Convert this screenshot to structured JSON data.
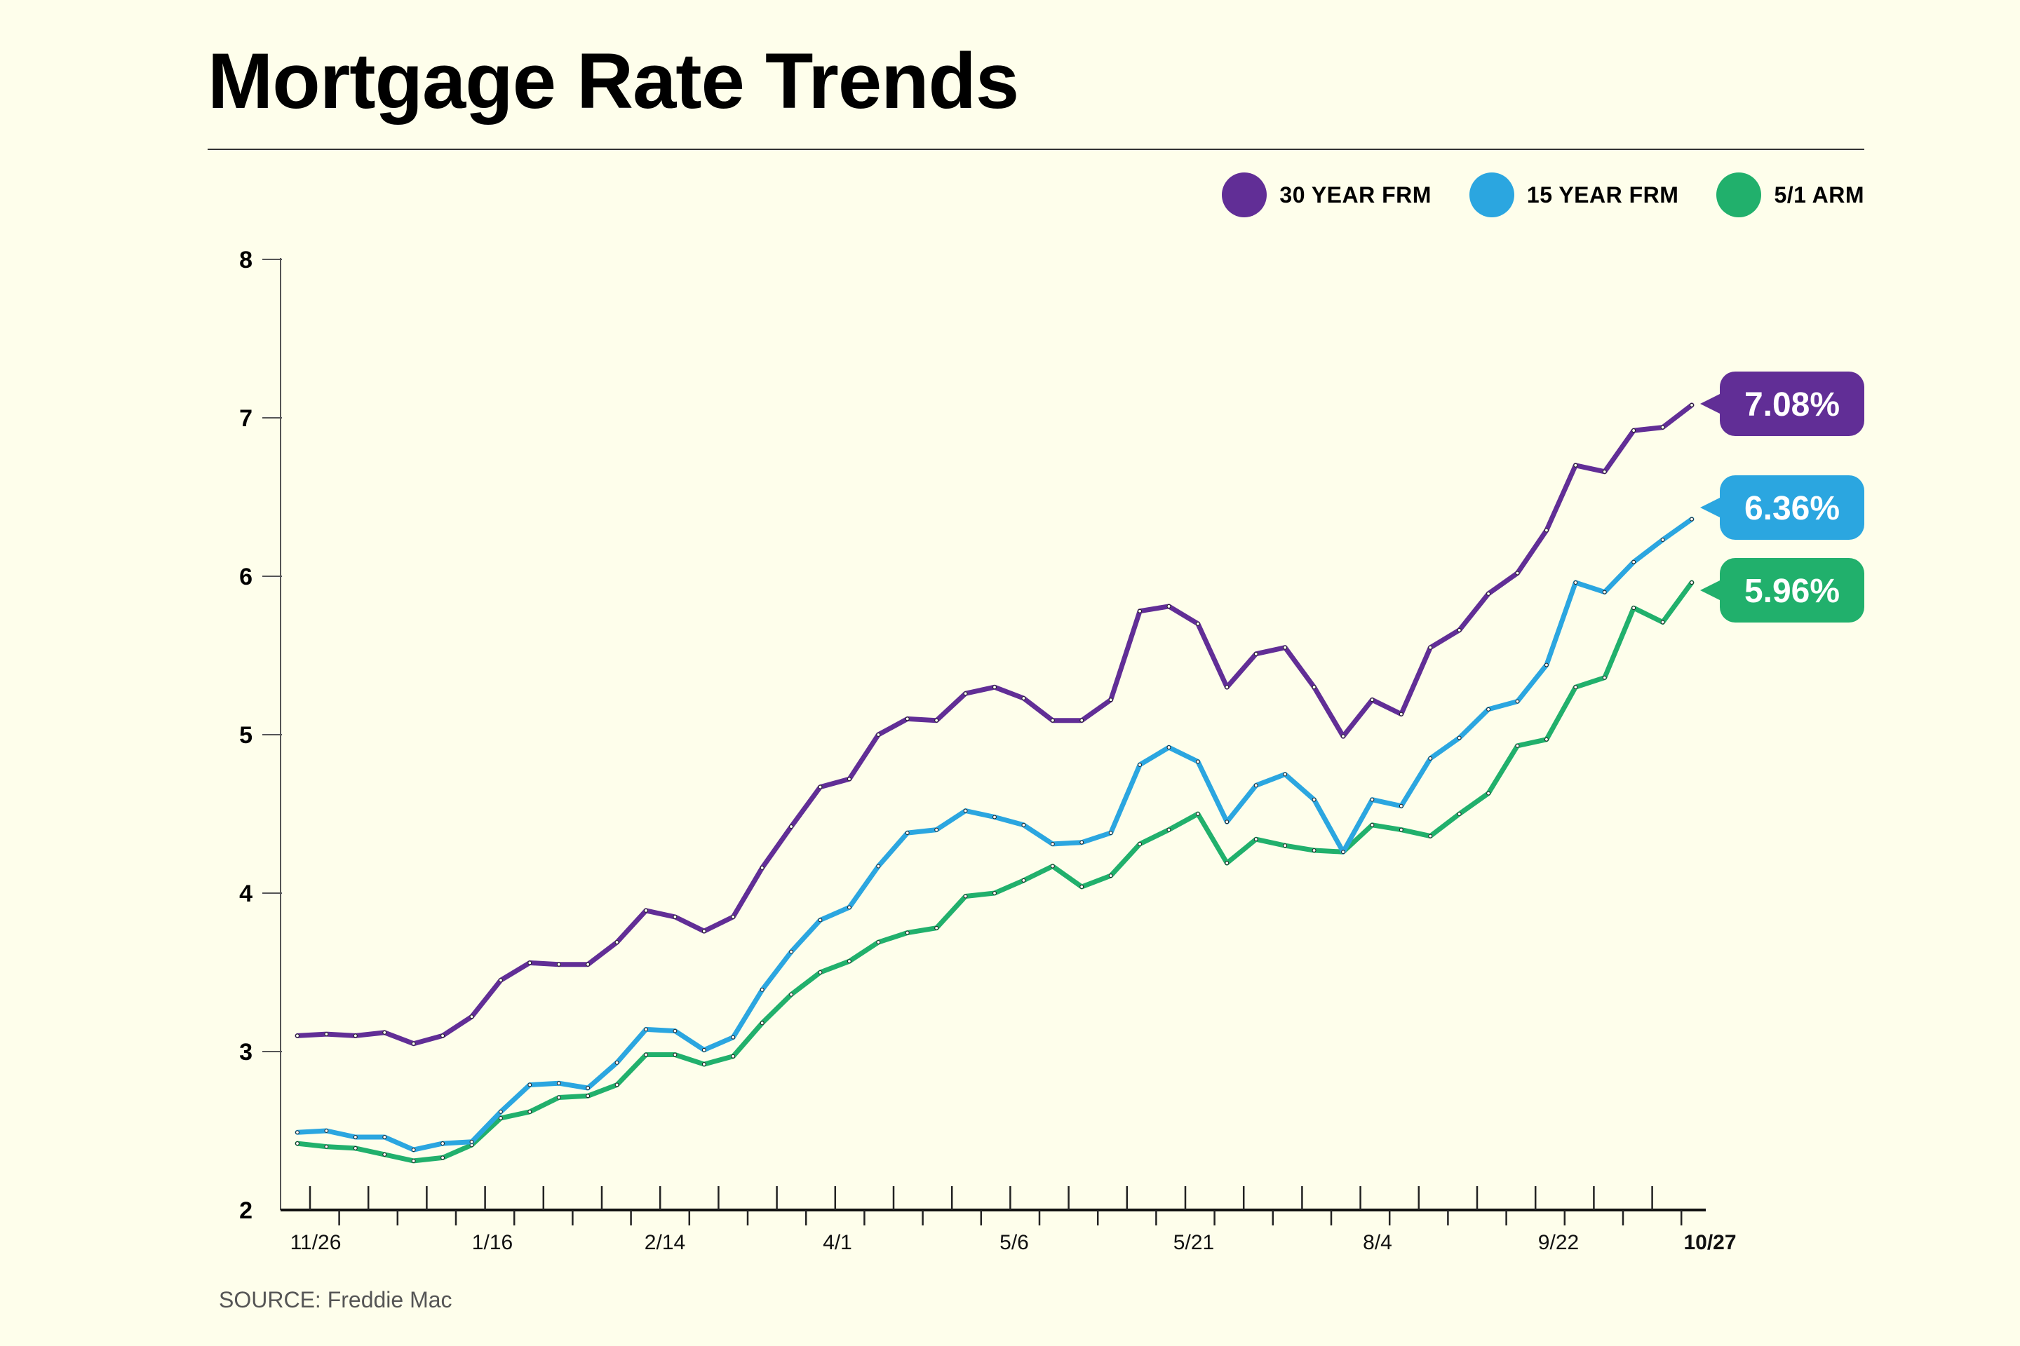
{
  "title": "Mortgage Rate Trends",
  "source": "SOURCE: Freddie Mac",
  "colors": {
    "rate30": "#612e96",
    "rate15": "#2ba6e0",
    "arm": "#21b06c",
    "background": "#fefeeb"
  },
  "legend": [
    {
      "label": "30 YEAR FRM",
      "color": "#612e96"
    },
    {
      "label": "15 YEAR FRM",
      "color": "#2ba6e0"
    },
    {
      "label": "5/1 ARM",
      "color": "#21b06c"
    }
  ],
  "chart_data": {
    "type": "line",
    "ylim": [
      2,
      8
    ],
    "yticks": [
      "2",
      "3",
      "4",
      "5",
      "6",
      "7",
      "8"
    ],
    "x_tick_labels": [
      "11/26",
      "1/16",
      "2/14",
      "4/1",
      "5/6",
      "5/21",
      "8/4",
      "9/22",
      "10/27"
    ],
    "grid": false,
    "legend_position": "top-right",
    "series": [
      {
        "name": "30 YEAR FRM",
        "color": "#612e96",
        "end_label": "7.08%",
        "values": [
          3.1,
          3.11,
          3.1,
          3.12,
          3.05,
          3.1,
          3.22,
          3.45,
          3.56,
          3.55,
          3.55,
          3.69,
          3.89,
          3.85,
          3.76,
          3.85,
          4.16,
          4.42,
          4.67,
          4.72,
          5.0,
          5.1,
          5.09,
          5.26,
          5.3,
          5.23,
          5.09,
          5.09,
          5.22,
          5.78,
          5.81,
          5.7,
          5.3,
          5.51,
          5.55,
          5.3,
          4.99,
          5.22,
          5.13,
          5.55,
          5.66,
          5.89,
          6.02,
          6.29,
          6.7,
          6.66,
          6.92,
          6.94,
          7.08
        ]
      },
      {
        "name": "15 YEAR FRM",
        "color": "#2ba6e0",
        "end_label": "6.36%",
        "values": [
          2.49,
          2.5,
          2.46,
          2.46,
          2.38,
          2.42,
          2.43,
          2.62,
          2.79,
          2.8,
          2.77,
          2.93,
          3.14,
          3.13,
          3.01,
          3.09,
          3.39,
          3.63,
          3.83,
          3.91,
          4.17,
          4.38,
          4.4,
          4.52,
          4.48,
          4.43,
          4.31,
          4.32,
          4.38,
          4.81,
          4.92,
          4.83,
          4.45,
          4.68,
          4.75,
          4.59,
          4.26,
          4.59,
          4.55,
          4.85,
          4.98,
          5.16,
          5.21,
          5.44,
          5.96,
          5.9,
          6.09,
          6.23,
          6.36
        ]
      },
      {
        "name": "5/1 ARM",
        "color": "#21b06c",
        "end_label": "5.96%",
        "values": [
          2.42,
          2.4,
          2.39,
          2.35,
          2.31,
          2.33,
          2.41,
          2.58,
          2.62,
          2.71,
          2.72,
          2.79,
          2.98,
          2.98,
          2.92,
          2.97,
          3.18,
          3.36,
          3.5,
          3.57,
          3.69,
          3.75,
          3.78,
          3.98,
          4.0,
          4.08,
          4.17,
          4.04,
          4.11,
          4.31,
          4.4,
          4.5,
          4.19,
          4.34,
          4.3,
          4.27,
          4.26,
          4.43,
          4.4,
          4.36,
          4.5,
          4.63,
          4.93,
          4.97,
          5.3,
          5.36,
          5.8,
          5.71,
          5.96
        ]
      }
    ]
  }
}
